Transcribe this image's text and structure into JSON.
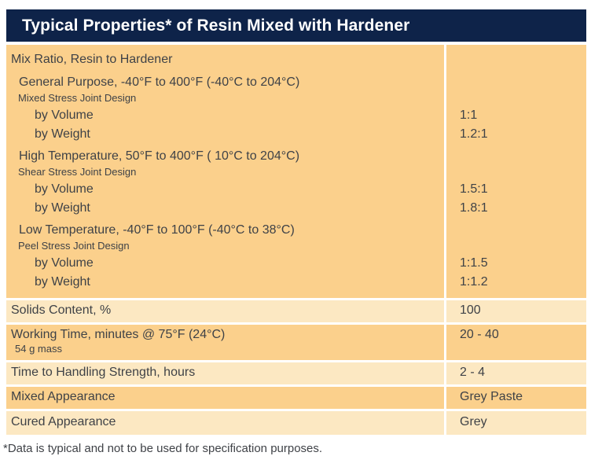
{
  "title": "Typical Properties* of Resin Mixed with Hardener",
  "footnote": "*Data is typical and not to be used for specification purposes.",
  "colors": {
    "header_bg": "#0E2349",
    "header_text": "#FFFFFF",
    "row_dark": "#FBD08C",
    "row_light": "#FCE8C2",
    "separator": "#FFFFFF",
    "body_text": "#3F4247"
  },
  "mix_ratio": {
    "label": "Mix Ratio, Resin to Hardener",
    "sections": [
      {
        "heading": "General Purpose, -40°F to 400°F (-40°C to 204°C)",
        "subheading": "Mixed Stress Joint Design",
        "rows": [
          {
            "label": "by Volume",
            "value": "1:1"
          },
          {
            "label": "by Weight",
            "value": "1.2:1"
          }
        ]
      },
      {
        "heading": "High Temperature, 50°F to 400°F ( 10°C to 204°C)",
        "subheading": "Shear Stress Joint Design",
        "rows": [
          {
            "label": "by Volume",
            "value": "1.5:1"
          },
          {
            "label": "by Weight",
            "value": "1.8:1"
          }
        ]
      },
      {
        "heading": "Low Temperature, -40°F to 100°F (-40°C to 38°C)",
        "subheading": "Peel Stress Joint Design",
        "rows": [
          {
            "label": "by Volume",
            "value": "1:1.5"
          },
          {
            "label": "by Weight",
            "value": "1:1.2"
          }
        ]
      }
    ]
  },
  "rows": [
    {
      "label": "Solids Content, %",
      "value": "100"
    },
    {
      "label": "Working Time, minutes @ 75°F (24°C)",
      "sublabel": "54 g mass",
      "value": "20 - 40"
    },
    {
      "label": "Time to Handling Strength, hours",
      "value": "2 - 4"
    },
    {
      "label": "Mixed Appearance",
      "value": "Grey Paste"
    },
    {
      "label": "Cured Appearance",
      "value": "Grey"
    }
  ]
}
